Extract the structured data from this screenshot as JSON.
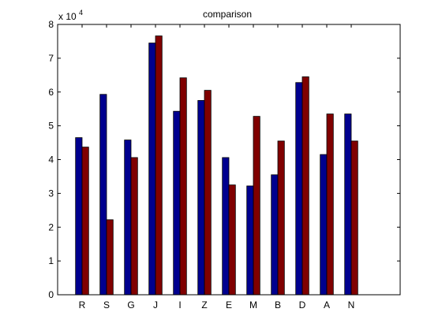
{
  "chart_data": {
    "type": "bar",
    "title": "comparison",
    "xlabel": "",
    "ylabel": "",
    "y_multiplier_base": "x 10",
    "y_multiplier_exponent": "4",
    "categories": [
      "R",
      "S",
      "G",
      "J",
      "I",
      "Z",
      "E",
      "M",
      "B",
      "D",
      "A",
      "N"
    ],
    "series": [
      {
        "color": "#00008f",
        "values": [
          4.65,
          5.93,
          4.58,
          7.45,
          5.43,
          5.75,
          4.06,
          3.22,
          3.55,
          6.28,
          4.15,
          5.35
        ]
      },
      {
        "color": "#800000",
        "values": [
          4.37,
          2.22,
          4.06,
          7.66,
          6.42,
          6.05,
          3.25,
          5.28,
          4.55,
          6.45,
          5.35,
          4.55
        ]
      }
    ],
    "ylim": [
      0,
      8
    ],
    "xlim": [
      0,
      14
    ],
    "yticks": [
      "0",
      "1",
      "2",
      "3",
      "4",
      "5",
      "6",
      "7",
      "8"
    ],
    "grid": false,
    "legend": "none"
  }
}
